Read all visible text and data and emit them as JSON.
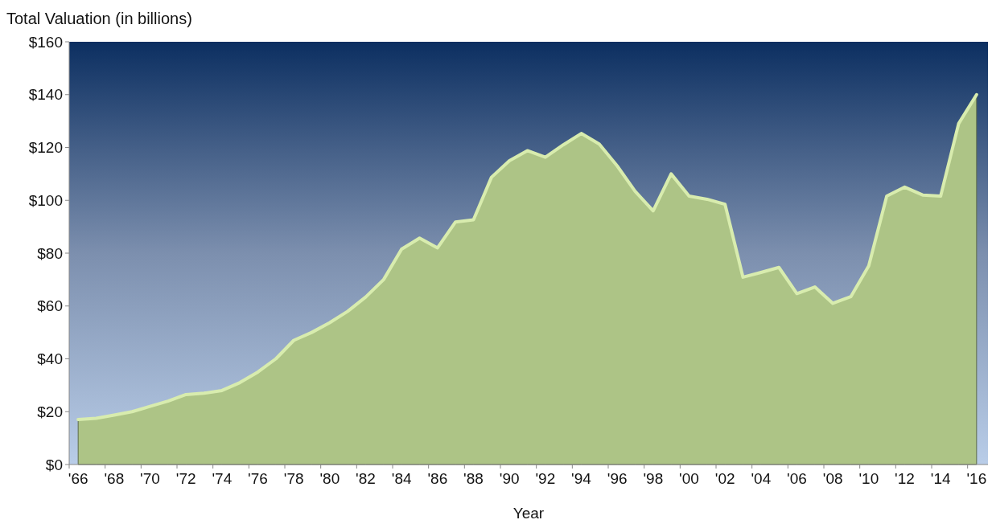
{
  "chart_data": {
    "type": "area",
    "ylabel": "Total Valuation (in billions)",
    "xlabel": "Year",
    "categories": [
      "'66",
      null,
      "'68",
      null,
      "'70",
      null,
      "'72",
      null,
      "'74",
      null,
      "'76",
      null,
      "'78",
      null,
      "'80",
      null,
      "'82",
      null,
      "'84",
      null,
      "'86",
      null,
      "'88",
      null,
      "'90",
      null,
      "'92",
      null,
      "'94",
      null,
      "'96",
      null,
      "'98",
      null,
      "'00",
      null,
      "'02",
      null,
      "'04",
      null,
      "'06",
      null,
      "'08",
      null,
      "'10",
      null,
      "'12",
      null,
      "'14",
      null,
      "'16"
    ],
    "series": [
      {
        "color": "#adc486",
        "values": [
          17,
          17.5,
          18.7,
          20,
          22,
          24,
          26.5,
          27,
          28,
          31,
          35,
          40,
          47,
          50,
          53.7,
          58,
          63.4,
          70,
          81.5,
          85.7,
          82,
          91.8,
          92.6,
          108.7,
          115,
          118.8,
          116.3,
          121,
          125.3,
          121.3,
          113,
          103.4,
          96,
          110,
          101.6,
          100.4,
          98.5,
          70.9,
          72.7,
          74.6,
          64.7,
          67.2,
          61,
          63.5,
          75.2,
          101.6,
          105,
          102,
          101.6,
          129,
          140
        ]
      }
    ],
    "ylim": [
      0,
      160
    ],
    "yticks": [
      {
        "value": 0,
        "label": "$0"
      },
      {
        "value": 20,
        "label": "$20"
      },
      {
        "value": 40,
        "label": "$40"
      },
      {
        "value": 60,
        "label": "$60"
      },
      {
        "value": 80,
        "label": "$80"
      },
      {
        "value": 100,
        "label": "$100"
      },
      {
        "value": 120,
        "label": "$120"
      },
      {
        "value": 140,
        "label": "$140"
      },
      {
        "value": 160,
        "label": "$160"
      }
    ],
    "grid": false
  }
}
